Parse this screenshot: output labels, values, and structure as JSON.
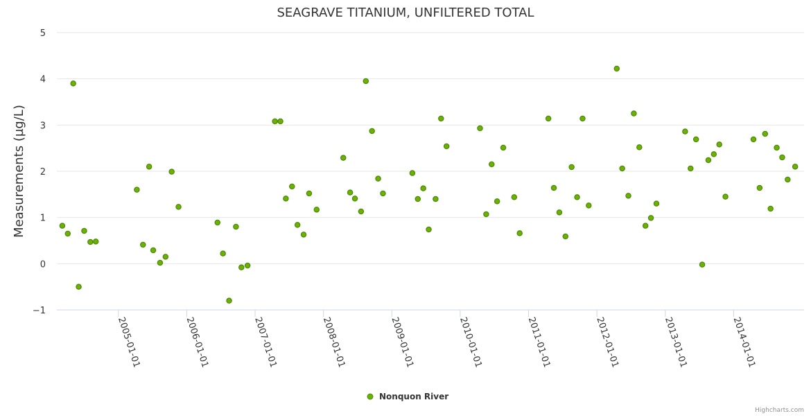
{
  "chart_data": {
    "type": "scatter",
    "title": "SEAGRAVE TITANIUM, UNFILTERED TOTAL",
    "xlabel": "",
    "ylabel": "Measurements (µg/L)",
    "ylim": [
      -1,
      5
    ],
    "yticks": [
      -1,
      0,
      1,
      2,
      3,
      4,
      5
    ],
    "xlim": [
      2004.1,
      2015.03
    ],
    "xticks": [
      {
        "value": 2005.0,
        "label": "2005-01-01"
      },
      {
        "value": 2006.0,
        "label": "2006-01-01"
      },
      {
        "value": 2007.0,
        "label": "2007-01-01"
      },
      {
        "value": 2008.0,
        "label": "2008-01-01"
      },
      {
        "value": 2009.0,
        "label": "2009-01-01"
      },
      {
        "value": 2010.0,
        "label": "2010-01-01"
      },
      {
        "value": 2011.0,
        "label": "2011-01-01"
      },
      {
        "value": 2012.0,
        "label": "2012-01-01"
      },
      {
        "value": 2013.0,
        "label": "2013-01-01"
      },
      {
        "value": 2014.0,
        "label": "2014-01-01"
      }
    ],
    "legend": "bottom-center",
    "grid": true,
    "series": [
      {
        "name": "Nonquon River",
        "color": "#6bb300",
        "border_color": "#4f8a0b",
        "points": [
          [
            2004.18,
            0.82
          ],
          [
            2004.26,
            0.65
          ],
          [
            2004.34,
            3.9
          ],
          [
            2004.42,
            -0.5
          ],
          [
            2004.5,
            0.71
          ],
          [
            2004.59,
            0.47
          ],
          [
            2004.67,
            0.48
          ],
          [
            2005.27,
            1.6
          ],
          [
            2005.36,
            0.41
          ],
          [
            2005.45,
            2.1
          ],
          [
            2005.51,
            0.29
          ],
          [
            2005.61,
            0.02
          ],
          [
            2005.69,
            0.15
          ],
          [
            2005.78,
            1.99
          ],
          [
            2005.88,
            1.23
          ],
          [
            2006.45,
            0.89
          ],
          [
            2006.53,
            0.22
          ],
          [
            2006.62,
            -0.8
          ],
          [
            2006.72,
            0.8
          ],
          [
            2006.8,
            -0.08
          ],
          [
            2006.89,
            -0.04
          ],
          [
            2007.29,
            3.08
          ],
          [
            2007.37,
            3.08
          ],
          [
            2007.45,
            1.41
          ],
          [
            2007.54,
            1.67
          ],
          [
            2007.62,
            0.84
          ],
          [
            2007.71,
            0.63
          ],
          [
            2007.79,
            1.52
          ],
          [
            2007.9,
            1.17
          ],
          [
            2008.29,
            2.29
          ],
          [
            2008.39,
            1.54
          ],
          [
            2008.46,
            1.41
          ],
          [
            2008.55,
            1.13
          ],
          [
            2008.62,
            3.95
          ],
          [
            2008.71,
            2.87
          ],
          [
            2008.8,
            1.84
          ],
          [
            2008.87,
            1.52
          ],
          [
            2009.3,
            1.96
          ],
          [
            2009.38,
            1.4
          ],
          [
            2009.46,
            1.63
          ],
          [
            2009.54,
            0.74
          ],
          [
            2009.64,
            1.4
          ],
          [
            2009.72,
            3.14
          ],
          [
            2009.8,
            2.54
          ],
          [
            2010.29,
            2.93
          ],
          [
            2010.38,
            1.07
          ],
          [
            2010.46,
            2.15
          ],
          [
            2010.54,
            1.35
          ],
          [
            2010.63,
            2.51
          ],
          [
            2010.79,
            1.44
          ],
          [
            2010.87,
            0.66
          ],
          [
            2011.29,
            3.14
          ],
          [
            2011.37,
            1.64
          ],
          [
            2011.45,
            1.11
          ],
          [
            2011.54,
            0.59
          ],
          [
            2011.63,
            2.09
          ],
          [
            2011.71,
            1.44
          ],
          [
            2011.79,
            3.14
          ],
          [
            2011.88,
            1.26
          ],
          [
            2012.29,
            4.22
          ],
          [
            2012.37,
            2.06
          ],
          [
            2012.46,
            1.47
          ],
          [
            2012.54,
            3.25
          ],
          [
            2012.62,
            2.52
          ],
          [
            2012.71,
            0.82
          ],
          [
            2012.79,
            0.99
          ],
          [
            2012.87,
            1.3
          ],
          [
            2013.29,
            2.86
          ],
          [
            2013.37,
            2.06
          ],
          [
            2013.45,
            2.69
          ],
          [
            2013.54,
            -0.02
          ],
          [
            2013.63,
            2.24
          ],
          [
            2013.71,
            2.37
          ],
          [
            2013.79,
            2.58
          ],
          [
            2013.88,
            1.45
          ],
          [
            2014.29,
            2.69
          ],
          [
            2014.38,
            1.64
          ],
          [
            2014.46,
            2.81
          ],
          [
            2014.54,
            1.19
          ],
          [
            2014.63,
            2.51
          ],
          [
            2014.71,
            2.3
          ],
          [
            2014.79,
            1.82
          ],
          [
            2014.9,
            2.1
          ]
        ]
      }
    ],
    "credits": "Highcharts.com"
  }
}
